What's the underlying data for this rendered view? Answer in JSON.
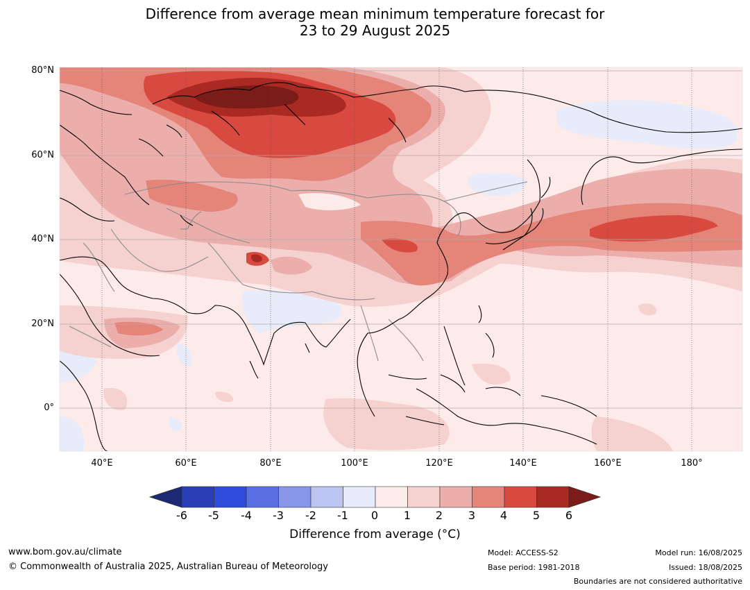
{
  "title": {
    "line1": "Difference from average mean minimum temperature forecast for",
    "line2": "23 to 29 August 2025"
  },
  "map": {
    "lat_labels": [
      "80°N",
      "60°N",
      "40°N",
      "20°N",
      "0°"
    ],
    "lon_labels": [
      "40°E",
      "60°E",
      "80°E",
      "100°E",
      "120°E",
      "140°E",
      "160°E",
      "180°"
    ],
    "lat_range": [
      -10,
      80
    ],
    "lon_range": [
      30,
      192
    ],
    "gridlines": true
  },
  "colorbar": {
    "ticks": [
      "-6",
      "-5",
      "-4",
      "-3",
      "-2",
      "-1",
      "0",
      "1",
      "2",
      "3",
      "4",
      "5",
      "6"
    ],
    "colors": [
      "#1c2a74",
      "#2a3fb5",
      "#2f4ddd",
      "#5a70e2",
      "#8896ea",
      "#bcc4f2",
      "#e8ebfa",
      "#fcebe9",
      "#f5d1cf",
      "#ebaeaa",
      "#e58479",
      "#d84a40",
      "#a82a23",
      "#7c1c18"
    ],
    "title": "Difference from average (°C)",
    "extend": "both"
  },
  "footer": {
    "url": "www.bom.gov.au/climate",
    "copyright": "© Commonwealth of Australia 2025, Australian Bureau of Meteorology",
    "model": "Model: ACCESS-S2",
    "base_period": "Base period: 1981-2018",
    "model_run": "Model run: 16/08/2025",
    "issued": "Issued: 18/08/2025",
    "disclaimer": "Boundaries are not considered authoritative"
  }
}
